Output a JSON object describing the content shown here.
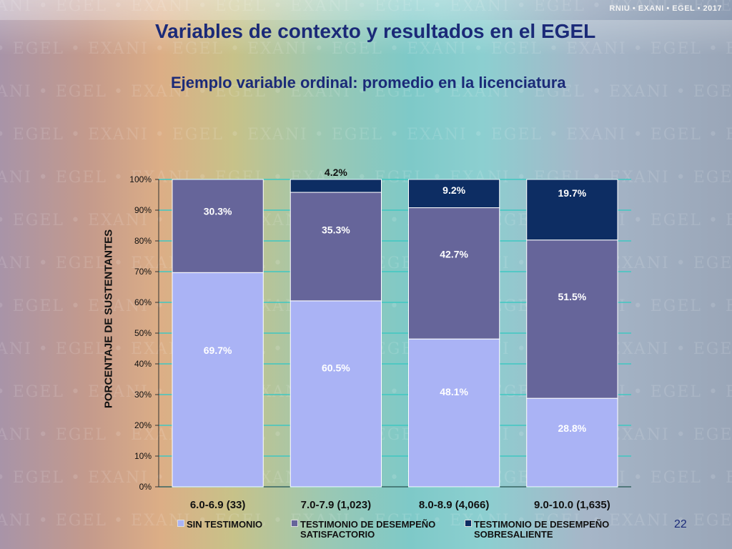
{
  "header": {
    "brand": "RNIU • EXANI • EGEL • 2017"
  },
  "slide": {
    "title": "Variables de contexto y resultados en el EGEL",
    "subtitle": "Ejemplo variable ordinal: promedio en la licenciatura",
    "page_number": "22"
  },
  "watermark_text": "EXANI • EGEL • EXANI • EGEL • EXANI • EGEL • EXANI • EGEL • EXANI • EGEL • EXANI • EGEL",
  "colors": {
    "title": "#1b2a78",
    "series": [
      "#aab3f5",
      "#66659a",
      "#0d2d63"
    ],
    "grid": "#3fc7c2",
    "axis": "#333333"
  },
  "chart_data": {
    "type": "bar",
    "stacked": true,
    "categories": [
      "6.0-6.9 (33)",
      "7.0-7.9 (1,023)",
      "8.0-8.9 (4,066)",
      "9.0-10.0 (1,635)"
    ],
    "series": [
      {
        "name": "SIN TESTIMONIO",
        "values": [
          69.7,
          60.5,
          48.1,
          28.8
        ],
        "labels": [
          "69.7%",
          "60.5%",
          "48.1%",
          "28.8%"
        ]
      },
      {
        "name": "TESTIMONIO DE DESEMPEÑO SATISFACTORIO",
        "values": [
          30.3,
          35.3,
          42.7,
          51.5
        ],
        "labels": [
          "30.3%",
          "35.3%",
          "42.7%",
          "51.5%"
        ]
      },
      {
        "name": "TESTIMONIO DE DESEMPEÑO SOBRESALIENTE",
        "values": [
          0,
          4.2,
          9.2,
          19.7
        ],
        "labels": [
          "",
          "4.2%",
          "9.2%",
          "19.7%"
        ]
      }
    ],
    "ylabel": "PORCENTAJE DE SUSTENTANTES",
    "ylim": [
      0,
      100
    ],
    "yticks": [
      "0%",
      "10%",
      "20%",
      "30%",
      "40%",
      "50%",
      "60%",
      "70%",
      "80%",
      "90%",
      "100%"
    ],
    "grid": true,
    "legend_position": "bottom"
  }
}
